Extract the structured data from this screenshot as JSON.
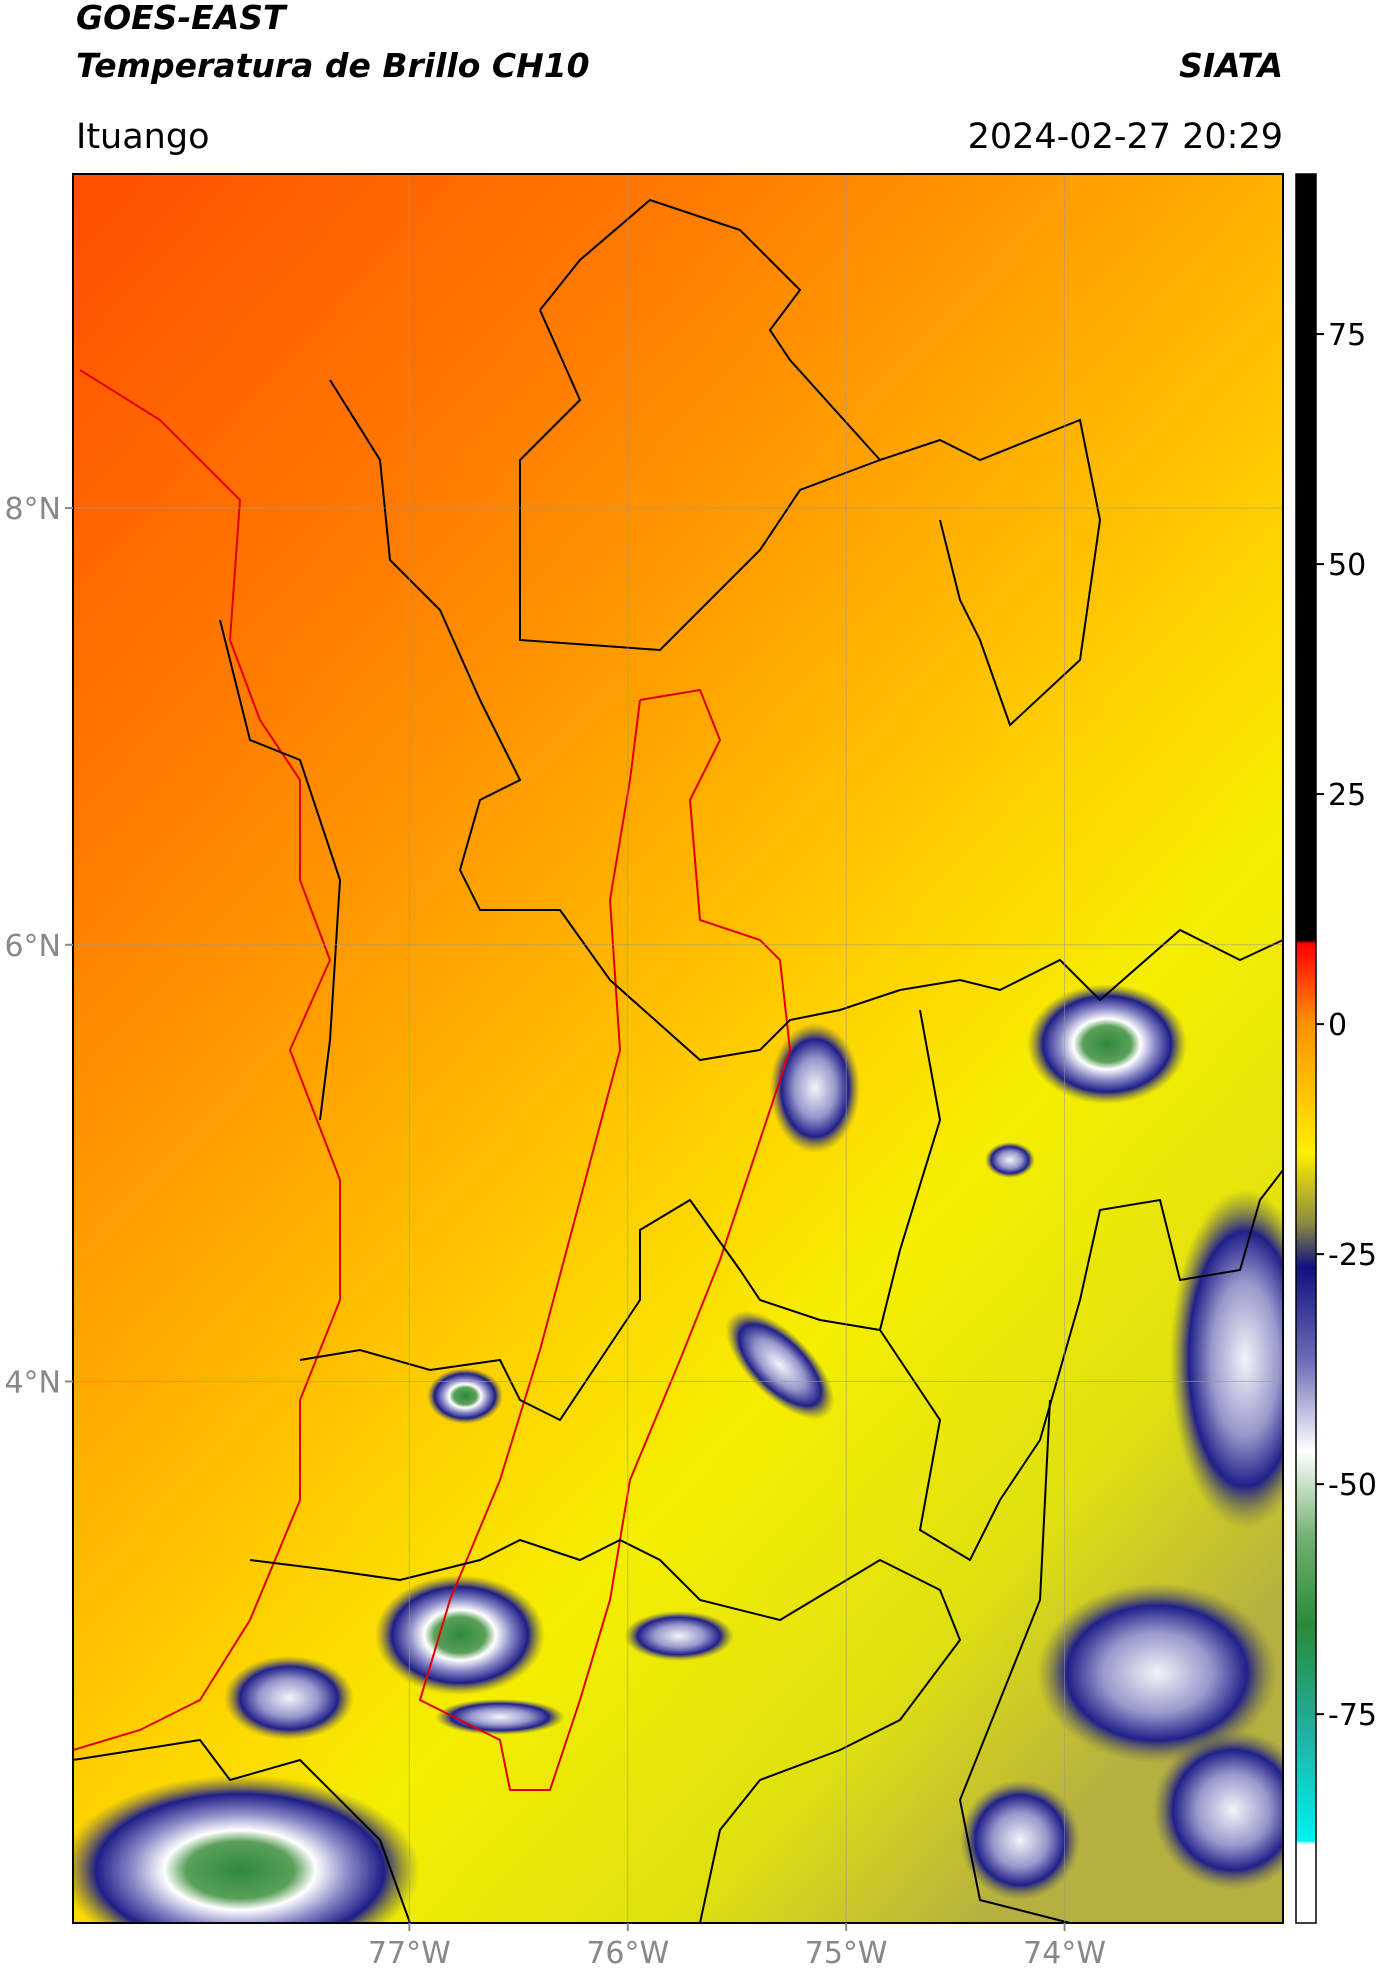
{
  "header": {
    "title": "GOES-EAST",
    "subtitle": "Temperatura de Brillo CH10",
    "source": "SIATA",
    "location": "Ituango",
    "timestamp": "2024-02-27 20:29"
  },
  "map": {
    "xlim": [
      -78.54,
      -73.0
    ],
    "ylim": [
      1.52,
      9.53
    ],
    "xticks": [
      {
        "value": -77,
        "label": "77°W"
      },
      {
        "value": -76,
        "label": "76°W"
      },
      {
        "value": -75,
        "label": "75°W"
      },
      {
        "value": -74,
        "label": "74°W"
      }
    ],
    "yticks": [
      {
        "value": 8,
        "label": "8°N"
      },
      {
        "value": 6,
        "label": "6°N"
      },
      {
        "value": 4,
        "label": "4°N"
      }
    ],
    "grid": true
  },
  "colorbar": {
    "lim": [
      -97.7,
      92.4
    ],
    "ticks": [
      -75,
      -50,
      -25,
      0,
      25,
      50,
      75
    ]
  }
}
